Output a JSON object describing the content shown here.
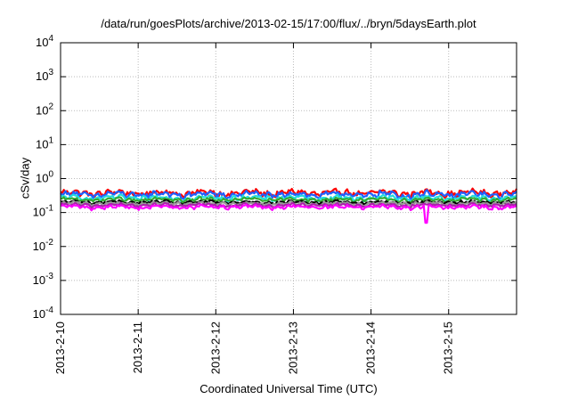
{
  "chart_data": {
    "type": "line",
    "title": "/data/run/goesPlots/archive/2013-02-15/17:00/flux/../bryn/5daysEarth.plot",
    "xlabel": "Coordinated Universal Time (UTC)",
    "ylabel": "cSv/day",
    "yscale": "log",
    "ylim": [
      0.0001,
      10000
    ],
    "yticks": [
      {
        "value": 0.0001,
        "base": "10",
        "exp": "-4"
      },
      {
        "value": 0.001,
        "base": "10",
        "exp": "-3"
      },
      {
        "value": 0.01,
        "base": "10",
        "exp": "-2"
      },
      {
        "value": 0.1,
        "base": "10",
        "exp": "-1"
      },
      {
        "value": 1,
        "base": "10",
        "exp": "0"
      },
      {
        "value": 10,
        "base": "10",
        "exp": "1"
      },
      {
        "value": 100,
        "base": "10",
        "exp": "2"
      },
      {
        "value": 1000,
        "base": "10",
        "exp": "3"
      },
      {
        "value": 10000,
        "base": "10",
        "exp": "4"
      }
    ],
    "xlim": [
      "2013-02-10T00:00",
      "2013-02-15T21:00"
    ],
    "xticks": [
      {
        "value": "2013-02-10T00:00",
        "label": "2013-2-10"
      },
      {
        "value": "2013-02-11T00:00",
        "label": "2013-2-11"
      },
      {
        "value": "2013-02-12T00:00",
        "label": "2013-2-12"
      },
      {
        "value": "2013-02-13T00:00",
        "label": "2013-2-13"
      },
      {
        "value": "2013-02-14T00:00",
        "label": "2013-2-14"
      },
      {
        "value": "2013-02-15T00:00",
        "label": "2013-2-15"
      }
    ],
    "grid": true,
    "legend": "none",
    "series": [
      {
        "color": "#ff0000",
        "level": 0.38,
        "amp": 0.2
      },
      {
        "color": "#2060ff",
        "level": 0.34,
        "amp": 0.2
      },
      {
        "color": "#22dddd",
        "level": 0.27,
        "amp": 0.15
      },
      {
        "color": "#33aa33",
        "level": 0.24,
        "amp": 0.12
      },
      {
        "color": "#000000",
        "level": 0.2,
        "amp": 0.1
      },
      {
        "color": "#999999",
        "level": 0.185,
        "amp": 0.1
      },
      {
        "color": "#aa22aa",
        "level": 0.165,
        "amp": 0.1
      },
      {
        "color": "#ff00ff",
        "level": 0.145,
        "amp": 0.12
      }
    ],
    "dip": {
      "time": "2013-02-14T17:00",
      "value": 0.05
    }
  }
}
